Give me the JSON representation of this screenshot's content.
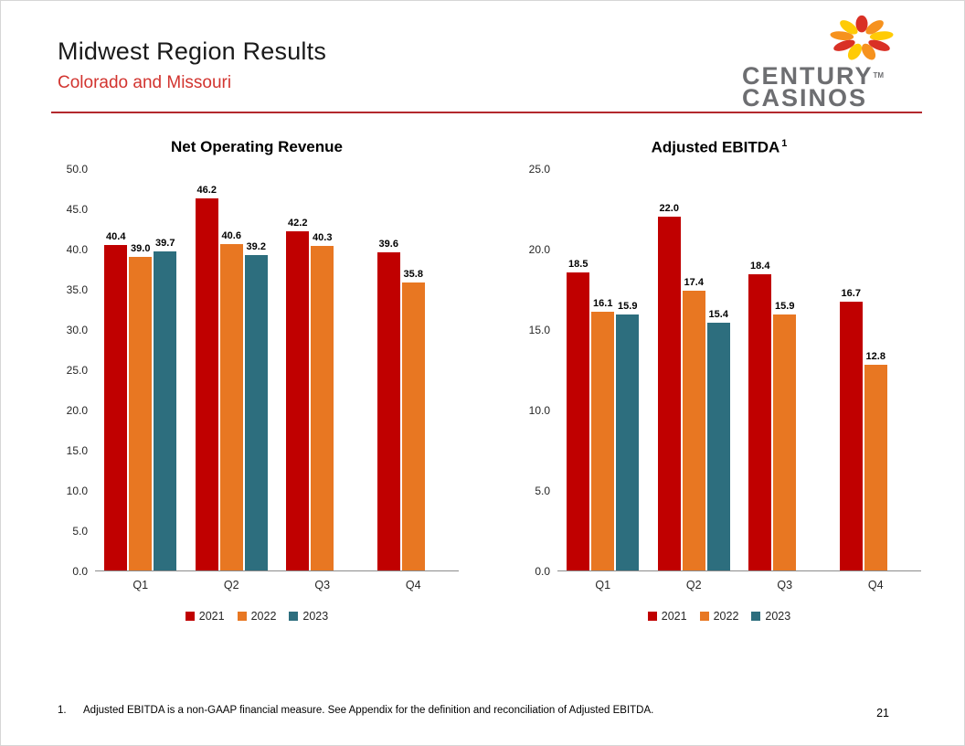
{
  "slide": {
    "title": "Midwest Region Results",
    "subtitle": "Colorado and Missouri",
    "footnote_marker": "1.",
    "footnote_text": "Adjusted EBITDA is a non-GAAP financial measure. See Appendix for the definition and reconciliation of Adjusted EBITDA.",
    "page_number": "21"
  },
  "logo": {
    "line1": "CENTURY",
    "line2": "CASINOS",
    "tm": "TM",
    "text_color": "#6d6e71",
    "petal_colors": [
      "#d93025",
      "#f6921e",
      "#ffcb05"
    ]
  },
  "theme": {
    "subtitle_red": "#d2342f",
    "divider_red": "#b3282d"
  },
  "chart_data": [
    {
      "type": "bar",
      "title": "Net Operating Revenue",
      "categories": [
        "Q1",
        "Q2",
        "Q3",
        "Q4"
      ],
      "series": [
        {
          "name": "2021",
          "color": "#c00000",
          "values": [
            40.4,
            46.2,
            42.2,
            39.6
          ]
        },
        {
          "name": "2022",
          "color": "#e87722",
          "values": [
            39.0,
            40.6,
            40.3,
            35.8
          ]
        },
        {
          "name": "2023",
          "color": "#2d6e7e",
          "values": [
            39.7,
            39.2,
            null,
            null
          ]
        }
      ],
      "ylim": [
        0,
        50
      ],
      "ytick_step": 5,
      "ytick_format": "one_decimal",
      "grid": false,
      "legend_position": "bottom"
    },
    {
      "type": "bar",
      "title": "Adjusted EBITDA",
      "title_sup": "1",
      "categories": [
        "Q1",
        "Q2",
        "Q3",
        "Q4"
      ],
      "series": [
        {
          "name": "2021",
          "color": "#c00000",
          "values": [
            18.5,
            22.0,
            18.4,
            16.7
          ]
        },
        {
          "name": "2022",
          "color": "#e87722",
          "values": [
            16.1,
            17.4,
            15.9,
            12.8
          ]
        },
        {
          "name": "2023",
          "color": "#2d6e7e",
          "values": [
            15.9,
            15.4,
            null,
            null
          ]
        }
      ],
      "ylim": [
        0,
        25
      ],
      "ytick_step": 5,
      "ytick_format": "one_decimal",
      "grid": false,
      "legend_position": "bottom"
    }
  ]
}
